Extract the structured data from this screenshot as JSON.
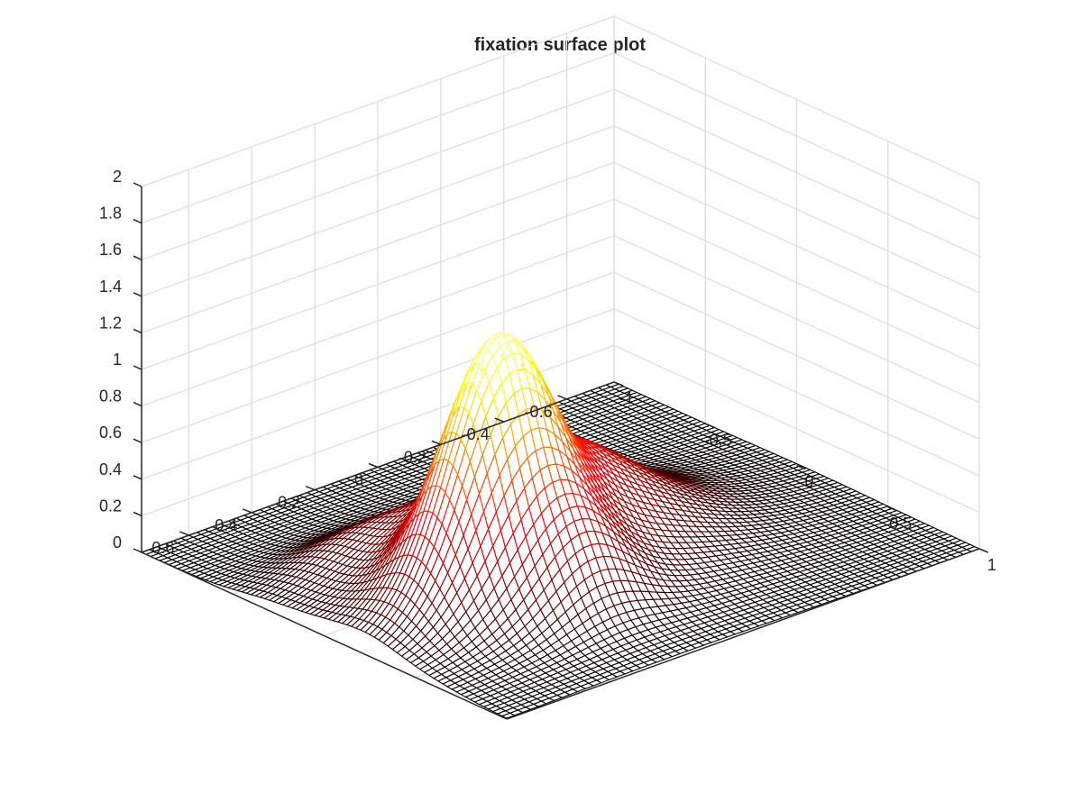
{
  "chart_data": {
    "type": "surface",
    "title": "fixation surface plot",
    "xlabel": "",
    "ylabel": "",
    "zlabel": "",
    "colormap": "hot",
    "grid": true,
    "x": {
      "range": [
        -1,
        1
      ],
      "ticks": [
        -1,
        -0.5,
        0,
        0.5,
        1
      ],
      "tick_labels": [
        "-1",
        "-0.5",
        "0",
        "0.5",
        "1"
      ]
    },
    "y": {
      "range": [
        -0.75,
        0.75
      ],
      "ticks": [
        -0.6,
        -0.4,
        -0.2,
        0,
        0.2,
        0.4,
        0.6
      ],
      "tick_labels": [
        "-0.6",
        "-0.4",
        "-0.2",
        "0",
        "0.2",
        "0.4",
        "0.6"
      ]
    },
    "z": {
      "range": [
        0,
        2
      ],
      "ticks": [
        0,
        0.2,
        0.4,
        0.6,
        0.8,
        1,
        1.2,
        1.4,
        1.6,
        1.8,
        2
      ],
      "tick_labels": [
        "0",
        "0.2",
        "0.4",
        "0.6",
        "0.8",
        "1",
        "1.2",
        "1.4",
        "1.6",
        "1.8",
        "2"
      ]
    },
    "peak": {
      "x": 0.25,
      "y": 0.35,
      "z": 1.67
    },
    "components": [
      {
        "x": 0.25,
        "y": 0.35,
        "amplitude": 1.1,
        "sigma": 0.15
      },
      {
        "x": 0.0,
        "y": 0.05,
        "amplitude": 0.4,
        "sigma": 0.25
      },
      {
        "x": 0.15,
        "y": 0.2,
        "amplitude": 0.3,
        "sigma": 0.35
      },
      {
        "x": 0.55,
        "y": 0.25,
        "amplitude": 0.28,
        "sigma": 0.12
      },
      {
        "x": -0.35,
        "y": 0.45,
        "amplitude": 0.12,
        "sigma": 0.15
      }
    ],
    "colors": {
      "axis": "#262626",
      "grid": "#dcdcdc",
      "background": "#ffffff"
    }
  }
}
